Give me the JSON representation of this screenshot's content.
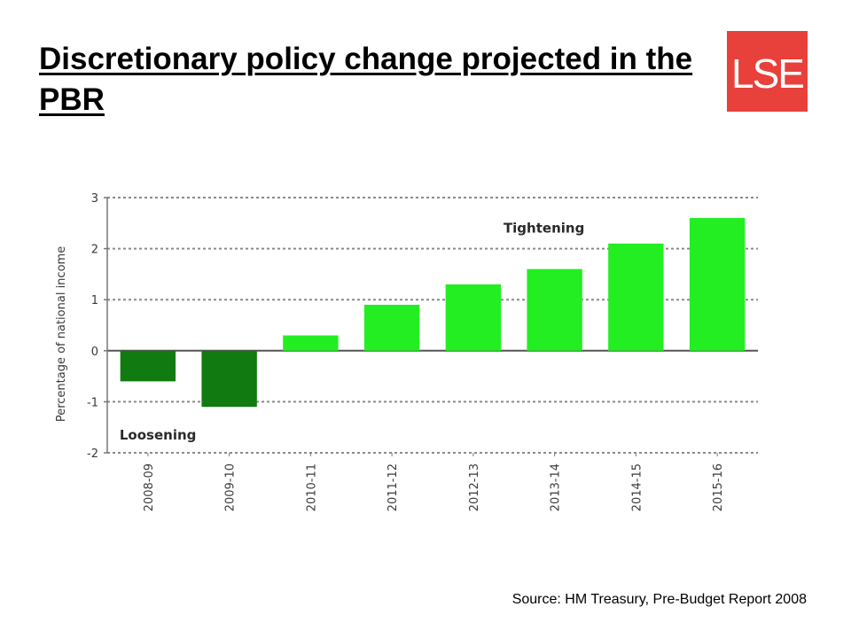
{
  "slide": {
    "title": "Discretionary policy change projected in the PBR",
    "source": "Source: HM Treasury, Pre-Budget Report 2008",
    "logo_text": "LSE",
    "logo_color": "#e8403a"
  },
  "chart_data": {
    "type": "bar",
    "categories": [
      "2008-09",
      "2009-10",
      "2010-11",
      "2011-12",
      "2012-13",
      "2013-14",
      "2014-15",
      "2015-16"
    ],
    "values": [
      -0.6,
      -1.1,
      0.3,
      0.9,
      1.3,
      1.6,
      2.1,
      2.6
    ],
    "ylabel": "Percentage of national income",
    "ylim": [
      -2,
      3
    ],
    "yticks": [
      3,
      2,
      1,
      0,
      -1,
      -2
    ],
    "grid": true,
    "colors": {
      "positive": "#22ee22",
      "negative": "#117a11"
    },
    "annotations": [
      {
        "text": "Tightening",
        "x": "2013-14",
        "y": 2.4
      },
      {
        "text": "Loosening",
        "x": "2008-09",
        "y": -1.65
      }
    ]
  }
}
